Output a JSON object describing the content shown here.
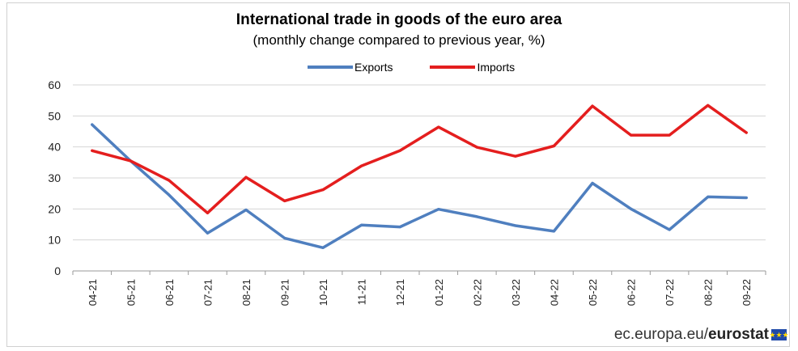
{
  "chart_data": {
    "type": "line",
    "title": "International trade in goods of the euro area",
    "subtitle": "(monthly change compared to previous year, %)",
    "xlabel": "",
    "ylabel": "",
    "ylim": [
      0,
      60
    ],
    "yticks": [
      0,
      10,
      20,
      30,
      40,
      50,
      60
    ],
    "grid": true,
    "legend_position": "top-center",
    "categories": [
      "04-21",
      "05-21",
      "06-21",
      "07-21",
      "08-21",
      "09-21",
      "10-21",
      "11-21",
      "12-21",
      "01-22",
      "02-22",
      "03-22",
      "04-22",
      "05-22",
      "06-22",
      "07-22",
      "08-22",
      "09-22"
    ],
    "series": [
      {
        "name": "Exports",
        "color": "#4f7fbf",
        "values": [
          47.2,
          35.5,
          24.5,
          12.2,
          19.7,
          10.6,
          7.5,
          14.8,
          14.2,
          19.9,
          17.5,
          14.6,
          12.8,
          28.3,
          20.0,
          13.3,
          23.9,
          23.6
        ]
      },
      {
        "name": "Imports",
        "color": "#e41e1e",
        "values": [
          38.8,
          35.5,
          29.2,
          18.7,
          30.2,
          22.6,
          26.2,
          33.9,
          38.8,
          46.4,
          39.9,
          37.0,
          40.3,
          53.2,
          43.8,
          43.8,
          53.4,
          44.6
        ]
      }
    ]
  },
  "footer": {
    "domain": "ec.europa.eu/",
    "brand": "eurostat",
    "flag_stars": "★★★"
  }
}
